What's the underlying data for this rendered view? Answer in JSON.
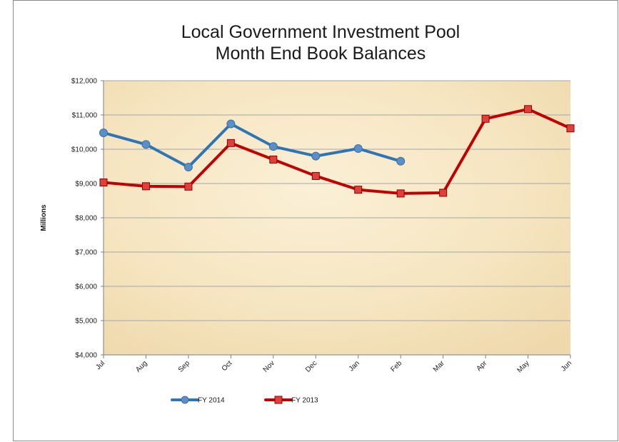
{
  "chart_data": {
    "type": "line",
    "title": [
      "Local Government Investment Pool",
      "Month End Book Balances"
    ],
    "xlabel": "",
    "ylabel": "Millions",
    "categories": [
      "Jul",
      "Aug",
      "Sep",
      "Oct",
      "Nov",
      "Dec",
      "Jan",
      "Feb",
      "Mar",
      "Apr",
      "May",
      "Jun"
    ],
    "ylim": [
      4000,
      12000
    ],
    "yticks": [
      4000,
      5000,
      6000,
      7000,
      8000,
      9000,
      10000,
      11000,
      12000
    ],
    "ytick_labels": [
      "$4,000",
      "$5,000",
      "$6,000",
      "$7,000",
      "$8,000",
      "$9,000",
      "$10,000",
      "$11,000",
      "$12,000"
    ],
    "grid": true,
    "legend_position": "bottom",
    "series": [
      {
        "name": "FY 2014",
        "marker": "circle",
        "color": "#2E75B6",
        "marker_fill": "#5B8FC9",
        "values": [
          10480,
          10140,
          9480,
          10740,
          10080,
          9800,
          10020,
          9650,
          null,
          null,
          null,
          null
        ]
      },
      {
        "name": "FY 2013",
        "marker": "square",
        "color": "#C00000",
        "marker_fill": "#E0403A",
        "values": [
          9030,
          8920,
          8910,
          10180,
          9700,
          9220,
          8820,
          8710,
          8730,
          10890,
          11170,
          10610
        ]
      }
    ],
    "colors": {
      "plot_background": "#F5E6C0",
      "gridline": "#A6A6A6",
      "axis": "#7F7F7F"
    }
  }
}
